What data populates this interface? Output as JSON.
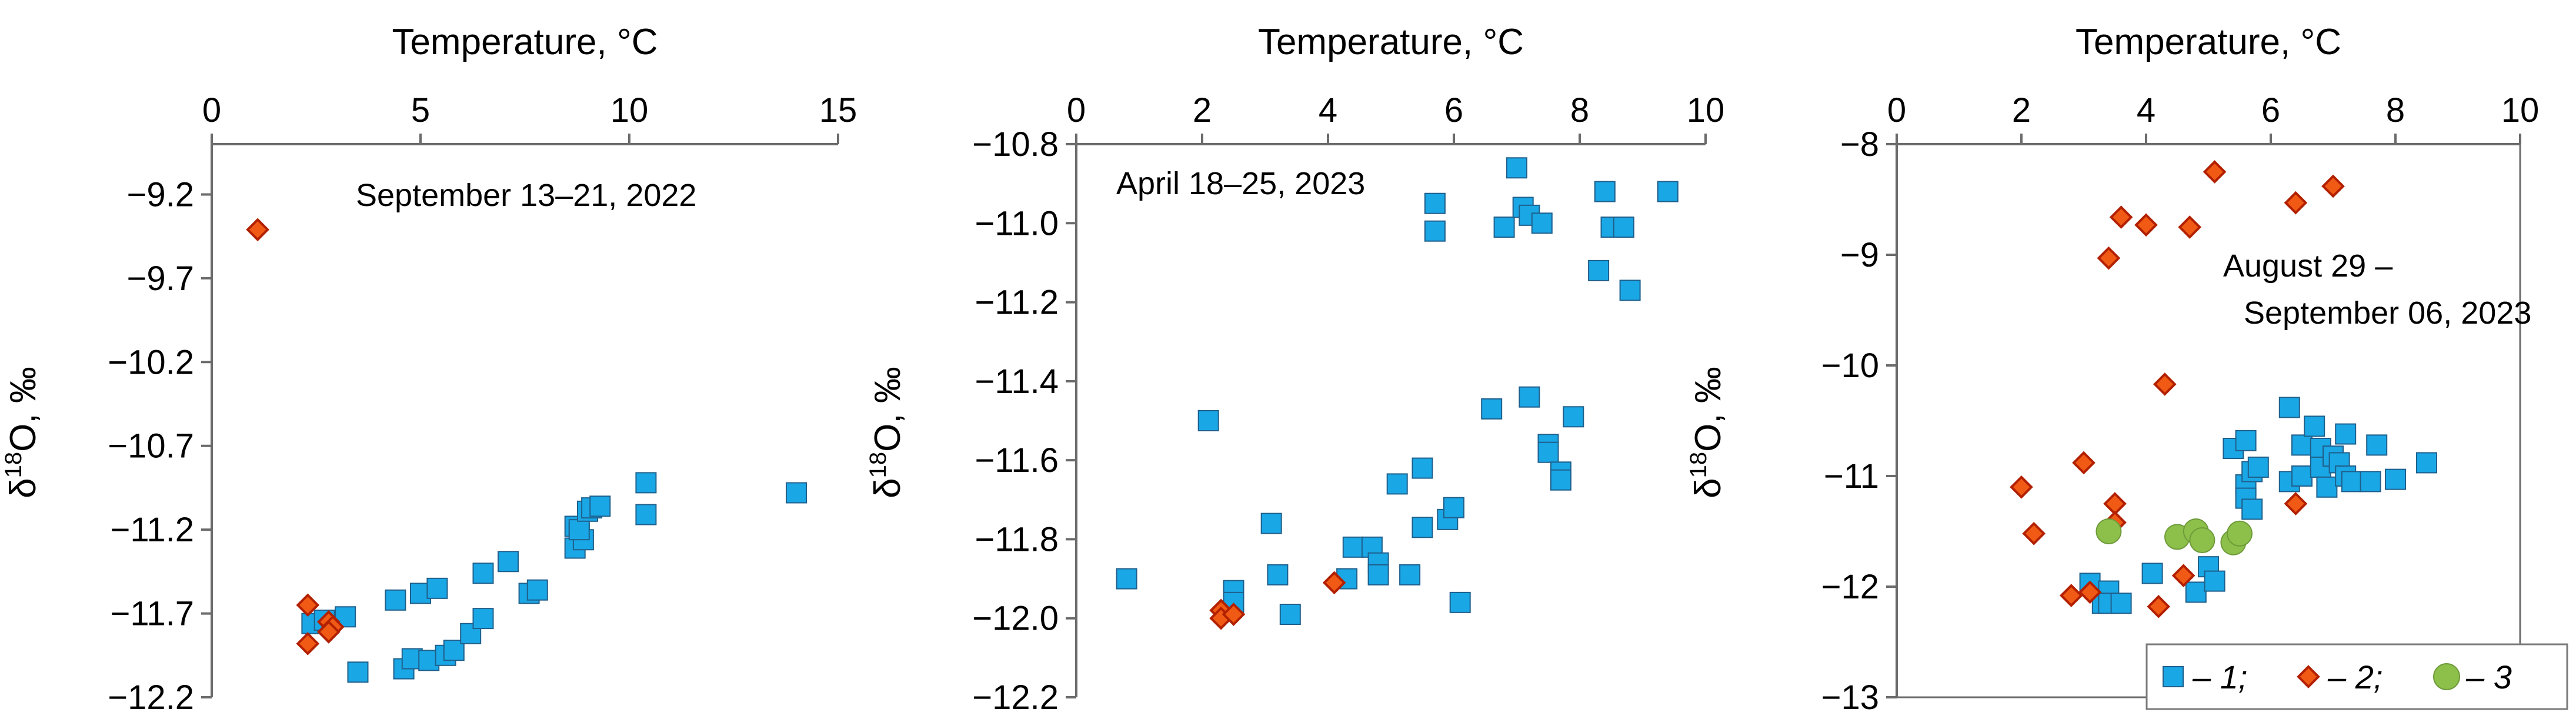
{
  "chart_data": [
    {
      "type": "scatter",
      "panel": "September 13–21, 2022",
      "annotation": "September 13–21, 2022",
      "xlabel": "Temperature, °C",
      "ylabel_main": "δ",
      "ylabel_sup": "18",
      "ylabel_rest": "O, ‰",
      "xlim": [
        0,
        15
      ],
      "ylim": [
        -12.2,
        -8.9
      ],
      "x_axis_position": "top",
      "y_reversed": true,
      "xticks": [
        0,
        5,
        10,
        15
      ],
      "xtick_labels": [
        "0",
        "5",
        "10",
        "15"
      ],
      "yticks": [
        -9.2,
        -9.7,
        -10.2,
        -10.7,
        -11.2,
        -11.7,
        -12.2
      ],
      "ytick_labels": [
        "−9.2",
        "−9.7",
        "−10.2",
        "−10.7",
        "−11.2",
        "−11.7",
        "−12.2"
      ],
      "series": [
        {
          "key": "1",
          "marker": "square",
          "color": "#1aa7e6",
          "points": [
            [
              2.4,
              -11.76
            ],
            [
              2.7,
              -11.74
            ],
            [
              3.2,
              -11.72
            ],
            [
              3.5,
              -12.05
            ],
            [
              4.4,
              -11.62
            ],
            [
              4.6,
              -12.03
            ],
            [
              4.8,
              -11.97
            ],
            [
              5.0,
              -11.58
            ],
            [
              5.2,
              -11.98
            ],
            [
              5.6,
              -11.95
            ],
            [
              5.4,
              -11.55
            ],
            [
              5.8,
              -11.92
            ],
            [
              6.2,
              -11.82
            ],
            [
              6.5,
              -11.73
            ],
            [
              6.5,
              -11.46
            ],
            [
              7.1,
              -11.39
            ],
            [
              7.6,
              -11.58
            ],
            [
              7.8,
              -11.56
            ],
            [
              8.7,
              -11.18
            ],
            [
              8.8,
              -11.22
            ],
            [
              8.7,
              -11.31
            ],
            [
              8.9,
              -11.26
            ],
            [
              8.8,
              -11.2
            ],
            [
              9.0,
              -11.09
            ],
            [
              9.1,
              -11.07
            ],
            [
              9.3,
              -11.06
            ],
            [
              10.4,
              -10.92
            ],
            [
              10.4,
              -11.11
            ],
            [
              14.0,
              -10.98
            ]
          ]
        },
        {
          "key": "2",
          "marker": "diamond",
          "color": "#f05a14",
          "points": [
            [
              1.1,
              -9.41
            ],
            [
              2.3,
              -11.65
            ],
            [
              2.3,
              -11.88
            ],
            [
              2.8,
              -11.75
            ],
            [
              2.9,
              -11.78
            ],
            [
              2.8,
              -11.81
            ]
          ]
        }
      ]
    },
    {
      "type": "scatter",
      "panel": "April 18–25, 2023",
      "annotation": "April 18–25, 2023",
      "xlabel": "Temperature, °C",
      "ylabel_main": "δ",
      "ylabel_sup": "18",
      "ylabel_rest": "O, ‰",
      "xlim": [
        0,
        10
      ],
      "ylim": [
        -12.2,
        -10.8
      ],
      "x_axis_position": "top",
      "y_reversed": true,
      "xticks": [
        0,
        2,
        4,
        6,
        8,
        10
      ],
      "xtick_labels": [
        "0",
        "2",
        "4",
        "6",
        "8",
        "10"
      ],
      "yticks": [
        -10.8,
        -11.0,
        -11.2,
        -11.4,
        -11.6,
        -11.8,
        -12.0,
        -12.2
      ],
      "ytick_labels": [
        "−10.8",
        "−11.0",
        "−11.2",
        "−11.4",
        "−11.6",
        "−11.8",
        "−12.0",
        "−12.2"
      ],
      "series": [
        {
          "key": "1",
          "marker": "square",
          "color": "#1aa7e6",
          "points": [
            [
              0.8,
              -11.9
            ],
            [
              2.1,
              -11.5
            ],
            [
              2.5,
              -11.93
            ],
            [
              2.5,
              -11.96
            ],
            [
              3.1,
              -11.76
            ],
            [
              3.2,
              -11.89
            ],
            [
              3.4,
              -11.99
            ],
            [
              4.3,
              -11.9
            ],
            [
              4.4,
              -11.82
            ],
            [
              4.7,
              -11.82
            ],
            [
              4.8,
              -11.86
            ],
            [
              4.8,
              -11.89
            ],
            [
              5.1,
              -11.66
            ],
            [
              5.3,
              -11.89
            ],
            [
              5.5,
              -11.77
            ],
            [
              5.5,
              -11.62
            ],
            [
              5.7,
              -10.95
            ],
            [
              5.7,
              -11.02
            ],
            [
              5.9,
              -11.75
            ],
            [
              6.0,
              -11.72
            ],
            [
              6.1,
              -11.96
            ],
            [
              6.6,
              -11.47
            ],
            [
              6.8,
              -11.01
            ],
            [
              7.0,
              -10.86
            ],
            [
              7.1,
              -10.96
            ],
            [
              7.2,
              -10.98
            ],
            [
              7.2,
              -11.44
            ],
            [
              7.4,
              -11.0
            ],
            [
              7.5,
              -11.56
            ],
            [
              7.5,
              -11.58
            ],
            [
              7.7,
              -11.63
            ],
            [
              7.7,
              -11.65
            ],
            [
              7.9,
              -11.49
            ],
            [
              8.3,
              -11.12
            ],
            [
              8.4,
              -10.92
            ],
            [
              8.5,
              -11.01
            ],
            [
              8.7,
              -11.01
            ],
            [
              8.8,
              -11.17
            ],
            [
              9.4,
              -10.92
            ]
          ]
        },
        {
          "key": "2",
          "marker": "diamond",
          "color": "#f05a14",
          "points": [
            [
              2.3,
              -11.98
            ],
            [
              2.3,
              -12.0
            ],
            [
              2.5,
              -11.99
            ],
            [
              4.1,
              -11.91
            ]
          ]
        }
      ]
    },
    {
      "type": "scatter",
      "panel": "August 29 – September 06, 2023",
      "annotation_line1": "August 29  –",
      "annotation_line2": "September 06, 2023",
      "xlabel": "Temperature, °C",
      "ylabel_main": "δ",
      "ylabel_sup": "18",
      "ylabel_rest": "O, ‰",
      "xlim": [
        0,
        10
      ],
      "ylim": [
        -13,
        -8
      ],
      "x_axis_position": "top",
      "y_reversed": true,
      "xticks": [
        0,
        2,
        4,
        6,
        8,
        10
      ],
      "xtick_labels": [
        "0",
        "2",
        "4",
        "6",
        "8",
        "10"
      ],
      "yticks": [
        -8,
        -9,
        -10,
        -11,
        -12,
        -13
      ],
      "ytick_labels": [
        "−8",
        "−9",
        "−10",
        "−11",
        "−12",
        "−13"
      ],
      "legend": {
        "position": "bottom-right",
        "entries": [
          "– 1;",
          "– 2;",
          "– 3"
        ]
      },
      "series": [
        {
          "key": "1",
          "marker": "square",
          "color": "#1aa7e6",
          "points": [
            [
              3.1,
              -11.97
            ],
            [
              3.3,
              -12.15
            ],
            [
              3.4,
              -12.04
            ],
            [
              3.4,
              -12.15
            ],
            [
              3.6,
              -12.15
            ],
            [
              4.1,
              -11.88
            ],
            [
              4.8,
              -12.05
            ],
            [
              5.0,
              -11.82
            ],
            [
              5.1,
              -11.95
            ],
            [
              5.4,
              -10.75
            ],
            [
              5.6,
              -10.68
            ],
            [
              5.6,
              -11.08
            ],
            [
              5.6,
              -11.2
            ],
            [
              5.7,
              -10.96
            ],
            [
              5.8,
              -10.92
            ],
            [
              5.7,
              -11.3
            ],
            [
              6.3,
              -11.05
            ],
            [
              6.3,
              -10.38
            ],
            [
              6.5,
              -10.72
            ],
            [
              6.5,
              -11.0
            ],
            [
              6.7,
              -10.55
            ],
            [
              6.8,
              -10.75
            ],
            [
              6.8,
              -10.92
            ],
            [
              6.9,
              -11.1
            ],
            [
              7.0,
              -10.82
            ],
            [
              7.1,
              -10.88
            ],
            [
              7.2,
              -11.0
            ],
            [
              7.2,
              -10.62
            ],
            [
              7.3,
              -11.05
            ],
            [
              7.6,
              -11.05
            ],
            [
              7.7,
              -10.72
            ],
            [
              8.0,
              -11.03
            ],
            [
              8.5,
              -10.88
            ]
          ]
        },
        {
          "key": "2",
          "marker": "diamond",
          "color": "#f05a14",
          "points": [
            [
              2.0,
              -11.1
            ],
            [
              2.2,
              -11.52
            ],
            [
              2.8,
              -12.08
            ],
            [
              3.0,
              -10.88
            ],
            [
              3.1,
              -12.05
            ],
            [
              3.4,
              -9.03
            ],
            [
              3.6,
              -8.66
            ],
            [
              3.5,
              -11.25
            ],
            [
              3.5,
              -11.42
            ],
            [
              4.0,
              -8.73
            ],
            [
              4.2,
              -12.18
            ],
            [
              4.3,
              -10.17
            ],
            [
              4.7,
              -8.75
            ],
            [
              4.6,
              -11.9
            ],
            [
              5.1,
              -8.25
            ],
            [
              6.4,
              -8.53
            ],
            [
              6.4,
              -11.25
            ],
            [
              7.0,
              -8.38
            ]
          ]
        },
        {
          "key": "3",
          "marker": "circle",
          "color": "#8dc04a",
          "points": [
            [
              3.4,
              -11.5
            ],
            [
              4.5,
              -11.55
            ],
            [
              4.8,
              -11.5
            ],
            [
              4.9,
              -11.58
            ],
            [
              5.4,
              -11.6
            ],
            [
              5.5,
              -11.52
            ]
          ]
        }
      ]
    }
  ]
}
